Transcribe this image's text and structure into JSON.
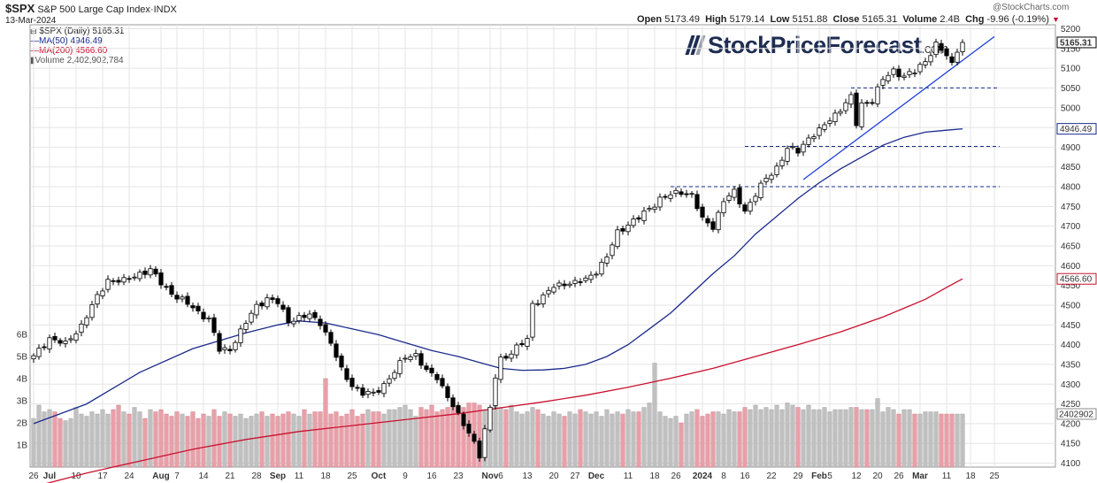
{
  "header": {
    "symbol": "$SPX",
    "name": "S&P 500 Large Cap Index",
    "exchange": "INDX",
    "date": "13-Mar-2024",
    "watermark": "@StockCharts.com",
    "open_label": "Open",
    "open": "5173.49",
    "high_label": "High",
    "high": "5179.14",
    "low_label": "Low",
    "low": "5151.88",
    "close_label": "Close",
    "close": "5165.31",
    "volume_label": "Volume",
    "volume": "2.4B",
    "chg_label": "Chg",
    "chg": "-9.96 (-0.19%)",
    "chg_icon": "down-triangle-icon"
  },
  "legend": {
    "price": "$SPX (Daily) 5165.31",
    "ma50": "MA(50) 4946.49",
    "ma200": "MA(200) 4566.60",
    "volume": "Volume 2,402,902,784"
  },
  "logo": {
    "main": "StockPriceForecast",
    "tld": ".com"
  },
  "colors": {
    "up": "#ffffff",
    "down": "#000000",
    "ma50": "#1a2a8c",
    "ma200": "#c8102e",
    "vol_up": "#c0c0c0",
    "vol_down": "#e8a0a8",
    "trend": "#1f3fd8",
    "grid": "#e4e4e4"
  },
  "chart_data": {
    "type": "candlestick",
    "title": "$SPX S&P 500 Large Cap Index",
    "ylim": [
      4090,
      5210
    ],
    "price_ticks": [
      4100,
      4150,
      4200,
      4250,
      4300,
      4350,
      4400,
      4450,
      4500,
      4550,
      4600,
      4650,
      4700,
      4750,
      4800,
      4850,
      4900,
      4950,
      5000,
      5050,
      5100,
      5150,
      5200
    ],
    "price_tick_labels": [
      "4100",
      "4150",
      "4200",
      "4250",
      "4300",
      "4350",
      "4400",
      "4450",
      "4500",
      "4550",
      "4600",
      "4650",
      "4700",
      "4750",
      "4800",
      "4850",
      "4900",
      "4950",
      "5000",
      "5050",
      "5100",
      "5150",
      "5200"
    ],
    "last_price_label": "5165.31",
    "ma50_label": "4946.49",
    "ma200_label": "4566.60",
    "volume_tag": "2402902",
    "volume_axis": {
      "max_billions": 7.0,
      "ticks": [
        1,
        2,
        3,
        4,
        5,
        6
      ],
      "labels": [
        "1B",
        "2B",
        "3B",
        "4B",
        "5B",
        "6B"
      ]
    },
    "x_labels": [
      {
        "text": "26",
        "day": 0
      },
      {
        "text": "Jul",
        "day": 3,
        "bold": true
      },
      {
        "text": "10",
        "day": 8
      },
      {
        "text": "17",
        "day": 13
      },
      {
        "text": "24",
        "day": 18
      },
      {
        "text": "Aug",
        "day": 24,
        "bold": true
      },
      {
        "text": "7",
        "day": 27
      },
      {
        "text": "14",
        "day": 32
      },
      {
        "text": "21",
        "day": 37
      },
      {
        "text": "28",
        "day": 42
      },
      {
        "text": "Sep",
        "day": 46,
        "bold": true
      },
      {
        "text": "11",
        "day": 50
      },
      {
        "text": "18",
        "day": 55
      },
      {
        "text": "25",
        "day": 60
      },
      {
        "text": "Oct",
        "day": 65,
        "bold": true
      },
      {
        "text": "9",
        "day": 70
      },
      {
        "text": "16",
        "day": 75
      },
      {
        "text": "23",
        "day": 80
      },
      {
        "text": "Nov",
        "day": 86,
        "bold": true
      },
      {
        "text": "6",
        "day": 88
      },
      {
        "text": "13",
        "day": 93
      },
      {
        "text": "20",
        "day": 98
      },
      {
        "text": "27",
        "day": 102
      },
      {
        "text": "Dec",
        "day": 106,
        "bold": true
      },
      {
        "text": "11",
        "day": 112
      },
      {
        "text": "18",
        "day": 117
      },
      {
        "text": "26",
        "day": 121
      },
      {
        "text": "2024",
        "day": 126,
        "bold": true
      },
      {
        "text": "8",
        "day": 130
      },
      {
        "text": "16",
        "day": 134
      },
      {
        "text": "22",
        "day": 139
      },
      {
        "text": "29",
        "day": 144
      },
      {
        "text": "Feb",
        "day": 148,
        "bold": true
      },
      {
        "text": "5",
        "day": 150
      },
      {
        "text": "12",
        "day": 155
      },
      {
        "text": "20",
        "day": 159
      },
      {
        "text": "26",
        "day": 163
      },
      {
        "text": "Mar",
        "day": 167,
        "bold": true
      },
      {
        "text": "11",
        "day": 172
      },
      {
        "text": "18",
        "day": 176.5
      },
      {
        "text": "25",
        "day": 181
      }
    ],
    "anchors": [
      [
        0,
        4368
      ],
      [
        3,
        4418
      ],
      [
        6,
        4400
      ],
      [
        9,
        4450
      ],
      [
        12,
        4520
      ],
      [
        14,
        4565
      ],
      [
        17,
        4560
      ],
      [
        20,
        4582
      ],
      [
        22,
        4588
      ],
      [
        24,
        4556
      ],
      [
        27,
        4520
      ],
      [
        30,
        4494
      ],
      [
        33,
        4464
      ],
      [
        35,
        4386
      ],
      [
        37,
        4390
      ],
      [
        39,
        4432
      ],
      [
        42,
        4500
      ],
      [
        44,
        4516
      ],
      [
        46,
        4505
      ],
      [
        48,
        4462
      ],
      [
        50,
        4468
      ],
      [
        52,
        4473
      ],
      [
        54,
        4458
      ],
      [
        56,
        4402
      ],
      [
        58,
        4335
      ],
      [
        60,
        4299
      ],
      [
        62,
        4275
      ],
      [
        64,
        4276
      ],
      [
        66,
        4300
      ],
      [
        68,
        4330
      ],
      [
        70,
        4370
      ],
      [
        72,
        4376
      ],
      [
        74,
        4330
      ],
      [
        76,
        4318
      ],
      [
        78,
        4270
      ],
      [
        80,
        4218
      ],
      [
        82,
        4178
      ],
      [
        83,
        4155
      ],
      [
        84,
        4120
      ],
      [
        85,
        4180
      ],
      [
        86,
        4237
      ],
      [
        87,
        4320
      ],
      [
        88,
        4366
      ],
      [
        90,
        4378
      ],
      [
        92,
        4402
      ],
      [
        93,
        4415
      ],
      [
        94,
        4505
      ],
      [
        96,
        4520
      ],
      [
        98,
        4547
      ],
      [
        100,
        4557
      ],
      [
        102,
        4555
      ],
      [
        104,
        4565
      ],
      [
        106,
        4588
      ],
      [
        108,
        4620
      ],
      [
        110,
        4685
      ],
      [
        112,
        4706
      ],
      [
        114,
        4720
      ],
      [
        116,
        4745
      ],
      [
        118,
        4770
      ],
      [
        120,
        4778
      ],
      [
        122,
        4788
      ],
      [
        124,
        4780
      ],
      [
        126,
        4715
      ],
      [
        128,
        4700
      ],
      [
        130,
        4765
      ],
      [
        132,
        4785
      ],
      [
        134,
        4740
      ],
      [
        136,
        4780
      ],
      [
        138,
        4820
      ],
      [
        140,
        4850
      ],
      [
        142,
        4895
      ],
      [
        144,
        4890
      ],
      [
        146,
        4925
      ],
      [
        148,
        4940
      ],
      [
        150,
        4970
      ],
      [
        152,
        4998
      ],
      [
        154,
        5025
      ],
      [
        155,
        4958
      ],
      [
        156,
        5010
      ],
      [
        158,
        5020
      ],
      [
        160,
        5070
      ],
      [
        162,
        5095
      ],
      [
        164,
        5080
      ],
      [
        166,
        5090
      ],
      [
        168,
        5120
      ],
      [
        170,
        5160
      ],
      [
        172,
        5130
      ],
      [
        173,
        5110
      ],
      [
        174,
        5150
      ],
      [
        175,
        5165.31
      ]
    ],
    "volume_billions": [
      2.2,
      2.8,
      2.5,
      2.6,
      2.5,
      2.2,
      2.1,
      2.2,
      2.7,
      2.4,
      2.3,
      2.5,
      2.4,
      2.6,
      2.4,
      2.6,
      2.8,
      2.5,
      2.4,
      2.7,
      2.5,
      2.2,
      2.6,
      2.5,
      2.6,
      2.4,
      2.3,
      2.5,
      2.4,
      2.3,
      2.5,
      2.2,
      2.4,
      2.3,
      2.6,
      2.3,
      2.5,
      2.4,
      2.3,
      2.4,
      2.2,
      2.3,
      2.4,
      2.5,
      2.3,
      2.4,
      2.3,
      2.4,
      2.5,
      2.4,
      2.3,
      2.6,
      2.4,
      2.5,
      2.5,
      4.0,
      2.4,
      2.5,
      2.3,
      2.4,
      2.6,
      2.3,
      2.4,
      2.6,
      2.5,
      2.5,
      2.4,
      2.6,
      2.6,
      2.7,
      2.8,
      2.6,
      2.3,
      2.7,
      2.6,
      2.8,
      2.5,
      2.6,
      2.7,
      3.0,
      2.8,
      2.7,
      2.9,
      2.9,
      2.8,
      2.6,
      2.7,
      2.8,
      2.7,
      2.6,
      2.8,
      2.5,
      2.4,
      2.5,
      2.7,
      2.6,
      2.4,
      2.3,
      2.5,
      2.4,
      2.3,
      2.5,
      2.4,
      2.6,
      2.5,
      2.4,
      2.5,
      2.3,
      2.6,
      2.4,
      2.5,
      2.4,
      2.6,
      2.5,
      2.5,
      2.7,
      2.9,
      4.7,
      2.5,
      2.3,
      2.2,
      2.3,
      2.0,
      2.4,
      2.5,
      2.6,
      2.3,
      2.4,
      2.5,
      2.5,
      2.4,
      2.6,
      2.5,
      2.5,
      2.7,
      2.6,
      2.8,
      2.6,
      2.7,
      2.6,
      2.8,
      2.6,
      2.9,
      2.8,
      2.7,
      2.6,
      2.8,
      2.6,
      2.6,
      2.7,
      2.5,
      2.6,
      2.6,
      2.6,
      2.7,
      2.7,
      2.6,
      2.6,
      2.6,
      3.1,
      2.5,
      2.7,
      2.6,
      2.4,
      2.6,
      2.6,
      2.4,
      2.4,
      2.5,
      2.5,
      2.5,
      2.4,
      2.4,
      2.4,
      2.4,
      2.4
    ],
    "ma50": [
      [
        0,
        4200
      ],
      [
        10,
        4250
      ],
      [
        20,
        4330
      ],
      [
        30,
        4390
      ],
      [
        40,
        4430
      ],
      [
        46,
        4450
      ],
      [
        50,
        4460
      ],
      [
        55,
        4455
      ],
      [
        60,
        4440
      ],
      [
        65,
        4425
      ],
      [
        70,
        4405
      ],
      [
        75,
        4385
      ],
      [
        80,
        4370
      ],
      [
        84,
        4355
      ],
      [
        88,
        4340
      ],
      [
        92,
        4335
      ],
      [
        96,
        4336
      ],
      [
        100,
        4340
      ],
      [
        104,
        4350
      ],
      [
        108,
        4370
      ],
      [
        112,
        4400
      ],
      [
        116,
        4440
      ],
      [
        120,
        4480
      ],
      [
        124,
        4530
      ],
      [
        128,
        4580
      ],
      [
        132,
        4625
      ],
      [
        136,
        4680
      ],
      [
        140,
        4725
      ],
      [
        144,
        4770
      ],
      [
        148,
        4810
      ],
      [
        152,
        4845
      ],
      [
        156,
        4875
      ],
      [
        160,
        4905
      ],
      [
        164,
        4925
      ],
      [
        168,
        4938
      ],
      [
        172,
        4943
      ],
      [
        175,
        4946.49
      ]
    ],
    "ma200": [
      [
        0,
        4040
      ],
      [
        10,
        4075
      ],
      [
        20,
        4105
      ],
      [
        30,
        4135
      ],
      [
        40,
        4160
      ],
      [
        50,
        4180
      ],
      [
        60,
        4195
      ],
      [
        70,
        4210
      ],
      [
        80,
        4225
      ],
      [
        88,
        4240
      ],
      [
        96,
        4255
      ],
      [
        104,
        4272
      ],
      [
        112,
        4292
      ],
      [
        120,
        4315
      ],
      [
        128,
        4340
      ],
      [
        136,
        4370
      ],
      [
        144,
        4400
      ],
      [
        152,
        4432
      ],
      [
        160,
        4470
      ],
      [
        168,
        4515
      ],
      [
        172,
        4545
      ],
      [
        175,
        4566.6
      ]
    ],
    "support_lines": [
      {
        "value": 5050,
        "from_day": 154,
        "to_day": 182
      },
      {
        "value": 4902,
        "from_day": 134,
        "to_day": 182
      },
      {
        "value": 4800,
        "from_day": 120,
        "to_day": 182
      }
    ],
    "trend_line": {
      "from": [
        145,
        4818
      ],
      "to": [
        181,
        5180
      ]
    }
  }
}
